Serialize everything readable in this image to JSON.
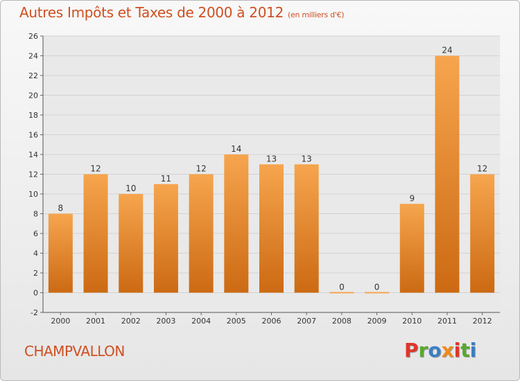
{
  "header": {
    "title": "Autres Impôts et Taxes de 2000 à 2012",
    "unit": "(en milliers d'€)"
  },
  "footer": {
    "city": "CHAMPVALLON",
    "logo": "Proxiti"
  },
  "colors": {
    "title": "#ce4f20",
    "bar_top": "#f6a54e",
    "bar_bottom": "#cc6a13",
    "logo_letters": [
      "#e0352a",
      "#58a830",
      "#3b7fc4",
      "#f08a1c",
      "#e0352a",
      "#58a830",
      "#3b7fc4"
    ]
  },
  "chart_data": {
    "type": "bar",
    "title": "Autres Impôts et Taxes de 2000 à 2012",
    "subtitle": "(en milliers d'€)",
    "categories": [
      "2000",
      "2001",
      "2002",
      "2003",
      "2004",
      "2005",
      "2006",
      "2007",
      "2008",
      "2009",
      "2010",
      "2011",
      "2012"
    ],
    "values": [
      8,
      12,
      10,
      11,
      12,
      14,
      13,
      13,
      0,
      0,
      9,
      24,
      12
    ],
    "ylim": [
      -2,
      26
    ],
    "yticks": [
      -2,
      0,
      2,
      4,
      6,
      8,
      10,
      12,
      14,
      16,
      18,
      20,
      22,
      24,
      26
    ],
    "grid": true
  }
}
